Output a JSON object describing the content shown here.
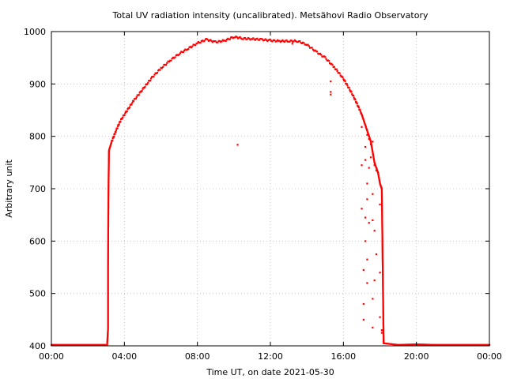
{
  "chart_data": {
    "type": "scatter",
    "title": "Total UV radiation intensity (uncalibrated). Metsähovi Radio Observatory",
    "xlabel": "Time UT, on date 2021-05-30",
    "ylabel": "Arbitrary unit",
    "xlim": [
      0,
      24
    ],
    "ylim": [
      400,
      1000
    ],
    "x_ticks": [
      {
        "value": 0,
        "label": "00:00"
      },
      {
        "value": 4,
        "label": "04:00"
      },
      {
        "value": 8,
        "label": "08:00"
      },
      {
        "value": 12,
        "label": "12:00"
      },
      {
        "value": 16,
        "label": "16:00"
      },
      {
        "value": 20,
        "label": "20:00"
      },
      {
        "value": 24,
        "label": "00:00"
      }
    ],
    "y_ticks": [
      400,
      500,
      600,
      700,
      800,
      900,
      1000
    ],
    "grid": true,
    "marker_color": "#ff0000",
    "series": [
      {
        "curve": [
          [
            0.0,
            402
          ],
          [
            1.0,
            402
          ],
          [
            2.0,
            402
          ],
          [
            3.05,
            402
          ],
          [
            3.1,
            433
          ],
          [
            3.1,
            548
          ],
          [
            3.12,
            683
          ],
          [
            3.15,
            773
          ],
          [
            3.3,
            790
          ],
          [
            3.5,
            808
          ],
          [
            3.75,
            828
          ],
          [
            4.0,
            842
          ],
          [
            4.5,
            868
          ],
          [
            5.0,
            890
          ],
          [
            5.5,
            912
          ],
          [
            6.0,
            930
          ],
          [
            6.5,
            945
          ],
          [
            7.0,
            958
          ],
          [
            7.5,
            968
          ],
          [
            8.0,
            978
          ],
          [
            8.5,
            985
          ],
          [
            9.0,
            980
          ],
          [
            9.5,
            983
          ],
          [
            10.0,
            990
          ],
          [
            10.5,
            987
          ],
          [
            11.0,
            986
          ],
          [
            11.5,
            985
          ],
          [
            12.0,
            983
          ],
          [
            12.5,
            982
          ],
          [
            13.0,
            982
          ],
          [
            13.5,
            982
          ],
          [
            14.0,
            975
          ],
          [
            14.5,
            962
          ],
          [
            15.0,
            950
          ],
          [
            15.5,
            932
          ],
          [
            16.0,
            910
          ],
          [
            16.5,
            880
          ],
          [
            16.8,
            858
          ],
          [
            17.0,
            842
          ],
          [
            17.5,
            790
          ],
          [
            17.7,
            750
          ],
          [
            17.9,
            730
          ],
          [
            18.0,
            710
          ],
          [
            18.1,
            700
          ],
          [
            18.2,
            405
          ],
          [
            19.0,
            402
          ],
          [
            20.0,
            403
          ],
          [
            21.0,
            402
          ],
          [
            22.0,
            402
          ],
          [
            23.0,
            402
          ],
          [
            24.0,
            402
          ]
        ],
        "outliers": [
          [
            10.2,
            784
          ],
          [
            13.2,
            977
          ],
          [
            15.3,
            905
          ],
          [
            15.3,
            885
          ],
          [
            15.3,
            880
          ],
          [
            17.0,
            818
          ],
          [
            17.0,
            745
          ],
          [
            17.0,
            662
          ],
          [
            17.1,
            545
          ],
          [
            17.1,
            480
          ],
          [
            17.1,
            450
          ],
          [
            17.2,
            780
          ],
          [
            17.2,
            755
          ],
          [
            17.2,
            645
          ],
          [
            17.2,
            600
          ],
          [
            17.3,
            803
          ],
          [
            17.3,
            710
          ],
          [
            17.3,
            680
          ],
          [
            17.3,
            565
          ],
          [
            17.3,
            520
          ],
          [
            17.4,
            795
          ],
          [
            17.4,
            740
          ],
          [
            17.4,
            635
          ],
          [
            17.5,
            785
          ],
          [
            17.5,
            760
          ],
          [
            17.6,
            790
          ],
          [
            17.6,
            690
          ],
          [
            17.6,
            640
          ],
          [
            17.6,
            490
          ],
          [
            17.6,
            435
          ],
          [
            17.7,
            745
          ],
          [
            17.7,
            620
          ],
          [
            17.7,
            525
          ],
          [
            17.8,
            735
          ],
          [
            17.8,
            575
          ],
          [
            18.0,
            670
          ],
          [
            18.0,
            540
          ],
          [
            18.0,
            455
          ],
          [
            18.1,
            430
          ],
          [
            18.1,
            425
          ],
          [
            18.2,
            410
          ],
          [
            18.2,
            408
          ]
        ]
      }
    ]
  }
}
